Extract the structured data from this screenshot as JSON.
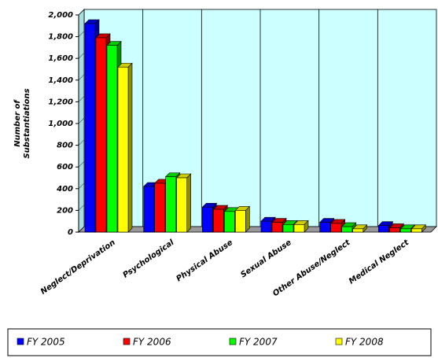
{
  "chart_data": {
    "type": "bar3d",
    "ylabel_lines": [
      "Number of",
      "Substantiations"
    ],
    "categories": [
      "Neglect/Deprivation",
      "Psychological",
      "Physical Abuse",
      "Sexual Abuse",
      "Other Abuse/Neglect",
      "Medical Neglect"
    ],
    "series": [
      {
        "name": "FY 2005",
        "color": "#0000ff",
        "values": [
          1920,
          420,
          230,
          100,
          90,
          60
        ]
      },
      {
        "name": "FY 2006",
        "color": "#ff0000",
        "values": [
          1790,
          450,
          210,
          90,
          80,
          40
        ]
      },
      {
        "name": "FY 2007",
        "color": "#00ff00",
        "values": [
          1720,
          510,
          190,
          70,
          50,
          30
        ]
      },
      {
        "name": "FY 2008",
        "color": "#ffff00",
        "values": [
          1520,
          500,
          200,
          70,
          30,
          30
        ]
      }
    ],
    "ylim": [
      0,
      2000
    ],
    "yticks": [
      0,
      200,
      400,
      600,
      800,
      {
        "value": 1000,
        "label": "1,000"
      },
      {
        "value": 1200,
        "label": "1,200"
      },
      {
        "value": 1400,
        "label": "1,400"
      },
      {
        "value": 1600,
        "label": "1,600"
      },
      {
        "value": 1800,
        "label": "1,800"
      },
      {
        "value": 2000,
        "label": "2,000"
      }
    ],
    "grid": true,
    "legend": "bottom"
  }
}
